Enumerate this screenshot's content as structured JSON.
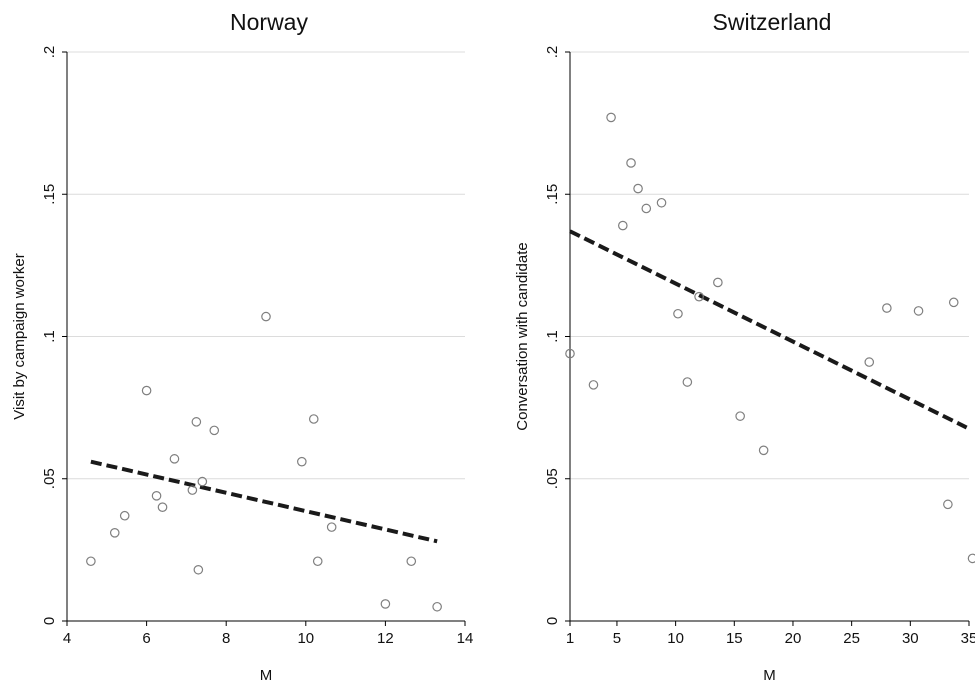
{
  "chart_data": [
    {
      "type": "scatter",
      "title": "Norway",
      "xlabel": "M",
      "ylabel": "Visit by campaign worker",
      "xlim": [
        4,
        14
      ],
      "ylim": [
        0,
        0.2
      ],
      "xticks": [
        4,
        6,
        8,
        10,
        12,
        14
      ],
      "xtick_labels": [
        "4",
        "6",
        "8",
        "10",
        "12",
        "14"
      ],
      "yticks": [
        0,
        0.05,
        0.1,
        0.15,
        0.2
      ],
      "ytick_labels": [
        "0",
        ".05",
        ".1",
        ".15",
        ".2"
      ],
      "grid": true,
      "point_color": "#7f7f7f",
      "line_color": "#1a1a1a",
      "points": [
        {
          "x": 4.6,
          "y": 0.021
        },
        {
          "x": 5.2,
          "y": 0.031
        },
        {
          "x": 5.45,
          "y": 0.037
        },
        {
          "x": 6.0,
          "y": 0.081
        },
        {
          "x": 6.25,
          "y": 0.044
        },
        {
          "x": 6.4,
          "y": 0.04
        },
        {
          "x": 6.7,
          "y": 0.057
        },
        {
          "x": 7.15,
          "y": 0.046
        },
        {
          "x": 7.25,
          "y": 0.07
        },
        {
          "x": 7.3,
          "y": 0.018
        },
        {
          "x": 7.4,
          "y": 0.049
        },
        {
          "x": 7.7,
          "y": 0.067
        },
        {
          "x": 9.0,
          "y": 0.107
        },
        {
          "x": 9.9,
          "y": 0.056
        },
        {
          "x": 10.2,
          "y": 0.071
        },
        {
          "x": 10.3,
          "y": 0.021
        },
        {
          "x": 10.65,
          "y": 0.033
        },
        {
          "x": 12.0,
          "y": 0.006
        },
        {
          "x": 12.65,
          "y": 0.021
        },
        {
          "x": 13.3,
          "y": 0.005
        }
      ],
      "fit_line": {
        "x": [
          4.6,
          13.3
        ],
        "y": [
          0.056,
          0.028
        ]
      }
    },
    {
      "type": "scatter",
      "title": "Switzerland",
      "xlabel": "M",
      "ylabel": "Conversation with candidate",
      "xlim": [
        1,
        35
      ],
      "ylim": [
        0,
        0.2
      ],
      "xticks": [
        1,
        5,
        10,
        15,
        20,
        25,
        30,
        35
      ],
      "xtick_labels": [
        "1",
        "5",
        "10",
        "15",
        "20",
        "25",
        "30",
        "35"
      ],
      "yticks": [
        0,
        0.05,
        0.1,
        0.15,
        0.2
      ],
      "ytick_labels": [
        "0",
        ".05",
        ".1",
        ".15",
        ".2"
      ],
      "grid": true,
      "point_color": "#7f7f7f",
      "line_color": "#1a1a1a",
      "points": [
        {
          "x": 1,
          "y": 0.094
        },
        {
          "x": 3,
          "y": 0.083
        },
        {
          "x": 4.5,
          "y": 0.177
        },
        {
          "x": 5.5,
          "y": 0.139
        },
        {
          "x": 6.2,
          "y": 0.161
        },
        {
          "x": 6.8,
          "y": 0.152
        },
        {
          "x": 7.5,
          "y": 0.145
        },
        {
          "x": 8.8,
          "y": 0.147
        },
        {
          "x": 10.2,
          "y": 0.108
        },
        {
          "x": 11,
          "y": 0.084
        },
        {
          "x": 12,
          "y": 0.114
        },
        {
          "x": 13.6,
          "y": 0.119
        },
        {
          "x": 15.5,
          "y": 0.072
        },
        {
          "x": 17.5,
          "y": 0.06
        },
        {
          "x": 26.5,
          "y": 0.091
        },
        {
          "x": 28,
          "y": 0.11
        },
        {
          "x": 30.7,
          "y": 0.109
        },
        {
          "x": 33.2,
          "y": 0.041
        },
        {
          "x": 33.7,
          "y": 0.112
        },
        {
          "x": 35.3,
          "y": 0.022
        }
      ],
      "fit_line": {
        "x": [
          1,
          34.8
        ],
        "y": [
          0.137,
          0.068
        ]
      }
    }
  ]
}
